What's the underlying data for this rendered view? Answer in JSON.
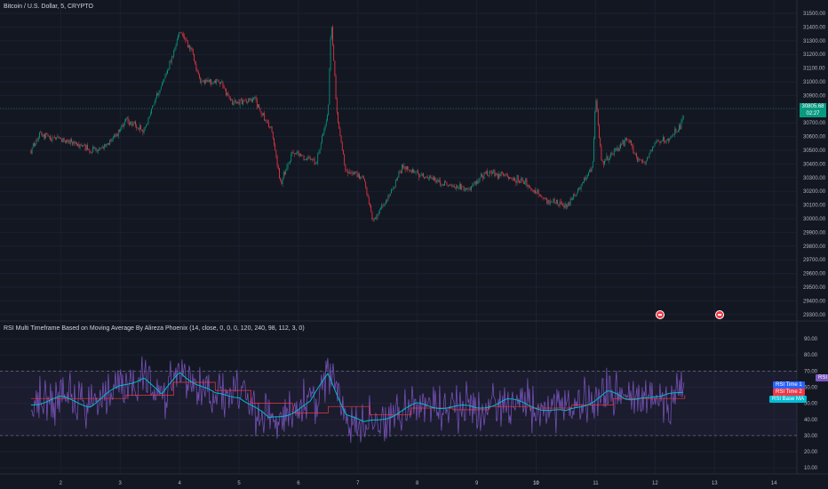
{
  "header": {
    "title": "Bitcoin / U.S. Dollar, 5, CRYPTO"
  },
  "indicator": {
    "title": "RSI Multi Timeframe Based on Moving Average By Alireza Phoenix (14, close, 0, 0, 0, 120, 240, 98, 112, 3, 0)"
  },
  "price_axis": {
    "labels": [
      "31500.00",
      "31400.00",
      "31300.00",
      "31200.00",
      "31100.00",
      "31000.00",
      "30900.00",
      "30800.00",
      "30700.00",
      "30600.00",
      "30500.00",
      "30400.00",
      "30300.00",
      "30200.00",
      "30100.00",
      "30000.00",
      "29900.00",
      "29800.00",
      "29700.00",
      "29600.00",
      "29500.00",
      "29400.00",
      "29300.00"
    ],
    "current_price": "30805.68",
    "countdown": "02:27"
  },
  "rsi_axis": {
    "labels": [
      "90.00",
      "80.00",
      "70.00",
      "60.00",
      "50.00",
      "40.00",
      "30.00",
      "20.00",
      "10.00"
    ]
  },
  "rsi_tags": [
    {
      "label": "RSI",
      "color": "#7e57c2"
    },
    {
      "label": "RSI Time 1",
      "color": "#2962ff"
    },
    {
      "label": "RSI Time 2",
      "color": "#f23645"
    },
    {
      "label": "RSI Base MA",
      "color": "#00bcd4"
    }
  ],
  "time_axis": {
    "labels": [
      "2",
      "3",
      "4",
      "5",
      "6",
      "7",
      "8",
      "9",
      "10",
      "11",
      "12",
      "13",
      "14"
    ]
  },
  "colors": {
    "bg": "#131722",
    "up": "#089981",
    "down": "#f23645",
    "rsi": "#7e57c2",
    "rsi_ma": "#00bcd4",
    "rsi_t1": "#2962ff",
    "rsi_t2": "#f23645"
  },
  "chart_data": {
    "type": "candlestick",
    "price_range": [
      29250,
      31520
    ],
    "rsi_range": [
      4,
      96
    ],
    "rsi_bands": [
      30,
      70
    ],
    "price_keypoints": [
      {
        "x": "1.5",
        "y": 30500
      },
      {
        "x": "1.65",
        "y": 30620
      },
      {
        "x": "2.1",
        "y": 30570
      },
      {
        "x": "2.6",
        "y": 30490
      },
      {
        "x": "2.85",
        "y": 30560
      },
      {
        "x": "3.1",
        "y": 30720
      },
      {
        "x": "3.4",
        "y": 30640
      },
      {
        "x": "3.5",
        "y": 30770
      },
      {
        "x": "3.85",
        "y": 31150
      },
      {
        "x": "4.0",
        "y": 31360
      },
      {
        "x": "4.2",
        "y": 31240
      },
      {
        "x": "4.35",
        "y": 30990
      },
      {
        "x": "4.65",
        "y": 31010
      },
      {
        "x": "4.9",
        "y": 30850
      },
      {
        "x": "5.25",
        "y": 30880
      },
      {
        "x": "5.55",
        "y": 30640
      },
      {
        "x": "5.7",
        "y": 30260
      },
      {
        "x": "5.9",
        "y": 30490
      },
      {
        "x": "6.3",
        "y": 30410
      },
      {
        "x": "6.5",
        "y": 30780
      },
      {
        "x": "6.55",
        "y": 31460
      },
      {
        "x": "6.65",
        "y": 30750
      },
      {
        "x": "6.8",
        "y": 30350
      },
      {
        "x": "7.1",
        "y": 30300
      },
      {
        "x": "7.25",
        "y": 29980
      },
      {
        "x": "7.5",
        "y": 30150
      },
      {
        "x": "7.75",
        "y": 30380
      },
      {
        "x": "8.0",
        "y": 30330
      },
      {
        "x": "8.5",
        "y": 30250
      },
      {
        "x": "8.85",
        "y": 30220
      },
      {
        "x": "9.2",
        "y": 30340
      },
      {
        "x": "9.8",
        "y": 30270
      },
      {
        "x": "10.15",
        "y": 30140
      },
      {
        "x": "10.5",
        "y": 30090
      },
      {
        "x": "10.7",
        "y": 30200
      },
      {
        "x": "10.95",
        "y": 30380
      },
      {
        "x": "11.0",
        "y": 30900
      },
      {
        "x": "11.1",
        "y": 30400
      },
      {
        "x": "11.3",
        "y": 30480
      },
      {
        "x": "11.55",
        "y": 30590
      },
      {
        "x": "11.7",
        "y": 30440
      },
      {
        "x": "11.85",
        "y": 30420
      },
      {
        "x": "12.0",
        "y": 30560
      },
      {
        "x": "12.25",
        "y": 30580
      },
      {
        "x": "12.45",
        "y": 30700
      },
      {
        "x": "12.5",
        "y": 30805
      }
    ],
    "rsi_ma_keypoints": [
      {
        "x": "1.5",
        "y": 50
      },
      {
        "x": "2.0",
        "y": 53
      },
      {
        "x": "2.5",
        "y": 49
      },
      {
        "x": "3.0",
        "y": 60
      },
      {
        "x": "3.4",
        "y": 67
      },
      {
        "x": "3.7",
        "y": 54
      },
      {
        "x": "4.0",
        "y": 70
      },
      {
        "x": "4.3",
        "y": 62
      },
      {
        "x": "4.6",
        "y": 55
      },
      {
        "x": "5.0",
        "y": 55
      },
      {
        "x": "5.5",
        "y": 40
      },
      {
        "x": "5.9",
        "y": 45
      },
      {
        "x": "6.2",
        "y": 50
      },
      {
        "x": "6.5",
        "y": 69
      },
      {
        "x": "6.8",
        "y": 44
      },
      {
        "x": "7.1",
        "y": 37
      },
      {
        "x": "7.5",
        "y": 42
      },
      {
        "x": "8.0",
        "y": 49
      },
      {
        "x": "8.5",
        "y": 48
      },
      {
        "x": "9.0",
        "y": 47
      },
      {
        "x": "9.5",
        "y": 52
      },
      {
        "x": "10.0",
        "y": 48
      },
      {
        "x": "10.5",
        "y": 44
      },
      {
        "x": "10.9",
        "y": 51
      },
      {
        "x": "11.2",
        "y": 57
      },
      {
        "x": "11.5",
        "y": 52
      },
      {
        "x": "11.8",
        "y": 55
      },
      {
        "x": "12.1",
        "y": 53
      },
      {
        "x": "12.5",
        "y": 58
      }
    ],
    "rsi_t2_steps": [
      {
        "x": "1.5",
        "y": 53
      },
      {
        "x": "2.4",
        "y": 53
      },
      {
        "x": "3.1",
        "y": 55
      },
      {
        "x": "3.9",
        "y": 63
      },
      {
        "x": "4.6",
        "y": 58
      },
      {
        "x": "5.2",
        "y": 50
      },
      {
        "x": "5.9",
        "y": 44
      },
      {
        "x": "6.5",
        "y": 48
      },
      {
        "x": "7.2",
        "y": 43
      },
      {
        "x": "7.9",
        "y": 47
      },
      {
        "x": "8.6",
        "y": 46
      },
      {
        "x": "9.2",
        "y": 48
      },
      {
        "x": "9.9",
        "y": 47
      },
      {
        "x": "10.6",
        "y": 49
      },
      {
        "x": "11.3",
        "y": 53
      },
      {
        "x": "12.5",
        "y": 55
      }
    ]
  }
}
